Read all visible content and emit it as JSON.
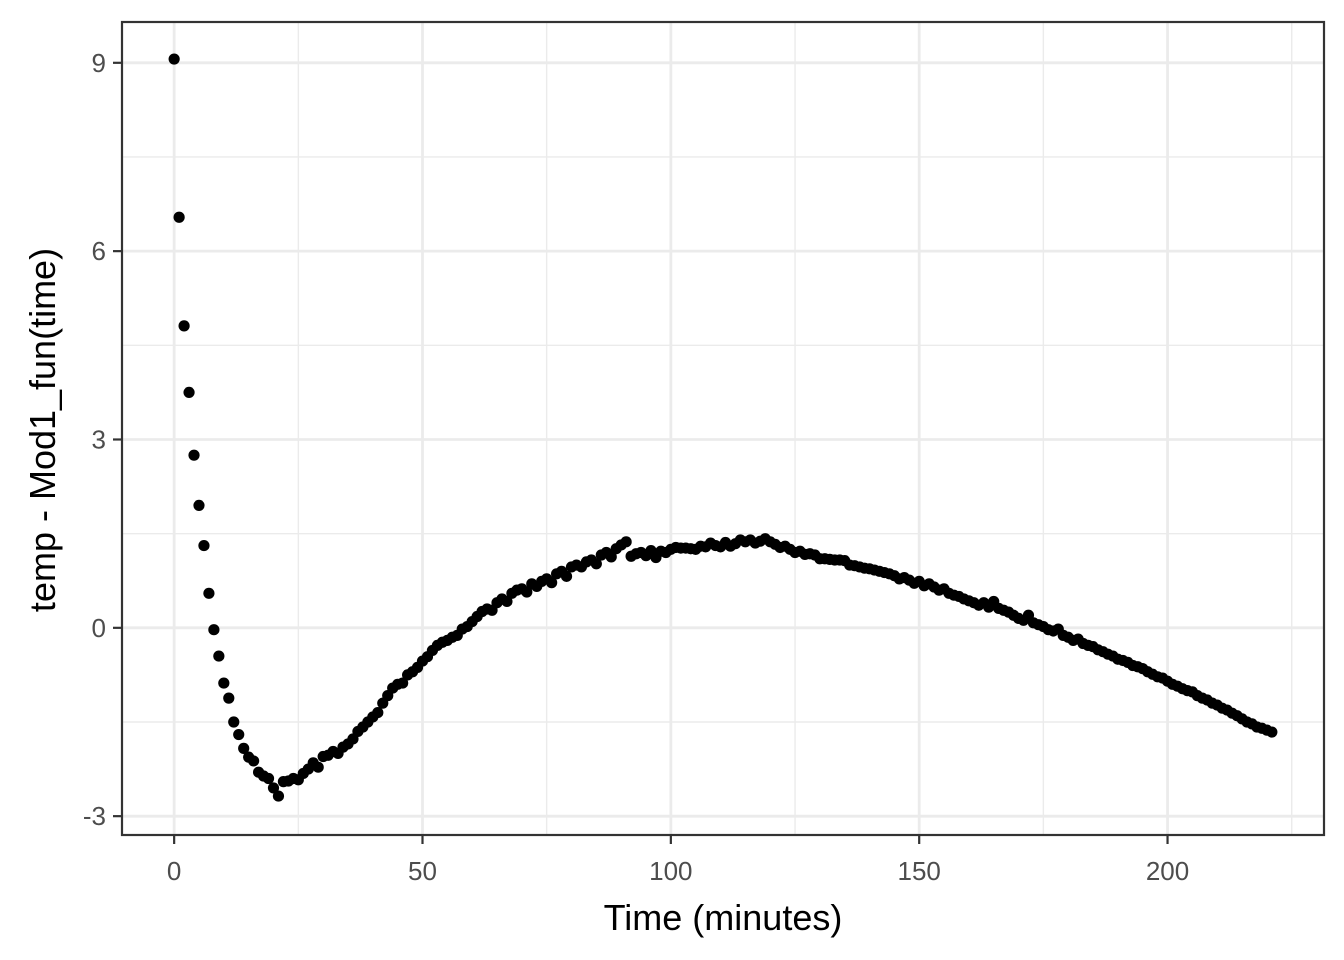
{
  "chart_data": {
    "type": "scatter",
    "xlabel": "Time (minutes)",
    "ylabel": "temp - Mod1_fun(time)",
    "xlim": [
      -10.5,
      231.5
    ],
    "ylim": [
      -3.3,
      9.65
    ],
    "x_ticks": [
      0,
      50,
      100,
      150,
      200
    ],
    "y_ticks": [
      -3,
      0,
      3,
      6,
      9
    ],
    "x_tick_labels": [
      "0",
      "50",
      "100",
      "150",
      "200"
    ],
    "y_tick_labels": [
      "-3",
      "0",
      "3",
      "6",
      "9"
    ],
    "grid": true,
    "legend": "none",
    "point_color": "#000000",
    "points": [
      [
        0,
        9.06
      ],
      [
        1,
        6.54
      ],
      [
        2,
        4.81
      ],
      [
        3,
        3.75
      ],
      [
        4,
        2.75
      ],
      [
        5,
        1.95
      ],
      [
        6,
        1.31
      ],
      [
        7,
        0.55
      ],
      [
        8,
        -0.03
      ],
      [
        9,
        -0.45
      ],
      [
        10,
        -0.88
      ],
      [
        11,
        -1.12
      ],
      [
        12,
        -1.5
      ],
      [
        13,
        -1.7
      ],
      [
        14,
        -1.92
      ],
      [
        15,
        -2.06
      ],
      [
        16,
        -2.12
      ],
      [
        17,
        -2.3
      ],
      [
        18,
        -2.36
      ],
      [
        19,
        -2.4
      ],
      [
        20,
        -2.55
      ],
      [
        21,
        -2.68
      ],
      [
        22,
        -2.45
      ],
      [
        23,
        -2.44
      ],
      [
        24,
        -2.4
      ],
      [
        25,
        -2.42
      ],
      [
        26,
        -2.32
      ],
      [
        27,
        -2.25
      ],
      [
        28,
        -2.15
      ],
      [
        29,
        -2.22
      ],
      [
        30,
        -2.05
      ],
      [
        31,
        -2.03
      ],
      [
        32,
        -1.97
      ],
      [
        33,
        -2.0
      ],
      [
        34,
        -1.9
      ],
      [
        35,
        -1.85
      ],
      [
        36,
        -1.77
      ],
      [
        37,
        -1.65
      ],
      [
        38,
        -1.58
      ],
      [
        39,
        -1.5
      ],
      [
        40,
        -1.42
      ],
      [
        41,
        -1.35
      ],
      [
        42,
        -1.2
      ],
      [
        43,
        -1.08
      ],
      [
        44,
        -0.96
      ],
      [
        45,
        -0.9
      ],
      [
        46,
        -0.88
      ],
      [
        47,
        -0.75
      ],
      [
        48,
        -0.7
      ],
      [
        49,
        -0.63
      ],
      [
        50,
        -0.53
      ],
      [
        51,
        -0.46
      ],
      [
        52,
        -0.36
      ],
      [
        53,
        -0.28
      ],
      [
        54,
        -0.23
      ],
      [
        55,
        -0.2
      ],
      [
        56,
        -0.15
      ],
      [
        57,
        -0.12
      ],
      [
        58,
        -0.02
      ],
      [
        59,
        0.02
      ],
      [
        60,
        0.1
      ],
      [
        61,
        0.18
      ],
      [
        62,
        0.26
      ],
      [
        63,
        0.3
      ],
      [
        64,
        0.28
      ],
      [
        65,
        0.4
      ],
      [
        66,
        0.46
      ],
      [
        67,
        0.42
      ],
      [
        68,
        0.55
      ],
      [
        69,
        0.6
      ],
      [
        70,
        0.62
      ],
      [
        71,
        0.57
      ],
      [
        72,
        0.7
      ],
      [
        73,
        0.66
      ],
      [
        74,
        0.74
      ],
      [
        75,
        0.78
      ],
      [
        76,
        0.72
      ],
      [
        77,
        0.86
      ],
      [
        78,
        0.9
      ],
      [
        79,
        0.82
      ],
      [
        80,
        0.97
      ],
      [
        81,
        1.0
      ],
      [
        82,
        0.97
      ],
      [
        83,
        1.05
      ],
      [
        84,
        1.08
      ],
      [
        85,
        1.02
      ],
      [
        86,
        1.16
      ],
      [
        87,
        1.2
      ],
      [
        88,
        1.13
      ],
      [
        89,
        1.26
      ],
      [
        90,
        1.32
      ],
      [
        91,
        1.37
      ],
      [
        92,
        1.14
      ],
      [
        93,
        1.18
      ],
      [
        94,
        1.2
      ],
      [
        95,
        1.15
      ],
      [
        96,
        1.23
      ],
      [
        97,
        1.12
      ],
      [
        98,
        1.22
      ],
      [
        99,
        1.2
      ],
      [
        100,
        1.25
      ],
      [
        101,
        1.28
      ],
      [
        102,
        1.27
      ],
      [
        103,
        1.27
      ],
      [
        104,
        1.26
      ],
      [
        105,
        1.25
      ],
      [
        106,
        1.3
      ],
      [
        107,
        1.29
      ],
      [
        108,
        1.35
      ],
      [
        109,
        1.31
      ],
      [
        110,
        1.29
      ],
      [
        111,
        1.36
      ],
      [
        112,
        1.3
      ],
      [
        113,
        1.34
      ],
      [
        114,
        1.4
      ],
      [
        115,
        1.37
      ],
      [
        116,
        1.4
      ],
      [
        117,
        1.35
      ],
      [
        118,
        1.38
      ],
      [
        119,
        1.42
      ],
      [
        120,
        1.37
      ],
      [
        121,
        1.33
      ],
      [
        122,
        1.28
      ],
      [
        123,
        1.3
      ],
      [
        124,
        1.25
      ],
      [
        125,
        1.2
      ],
      [
        126,
        1.22
      ],
      [
        127,
        1.17
      ],
      [
        128,
        1.18
      ],
      [
        129,
        1.16
      ],
      [
        130,
        1.1
      ],
      [
        131,
        1.1
      ],
      [
        132,
        1.09
      ],
      [
        133,
        1.08
      ],
      [
        134,
        1.08
      ],
      [
        135,
        1.07
      ],
      [
        136,
        1.0
      ],
      [
        137,
        0.99
      ],
      [
        138,
        0.97
      ],
      [
        139,
        0.95
      ],
      [
        140,
        0.94
      ],
      [
        141,
        0.92
      ],
      [
        142,
        0.9
      ],
      [
        143,
        0.88
      ],
      [
        144,
        0.86
      ],
      [
        145,
        0.83
      ],
      [
        146,
        0.78
      ],
      [
        147,
        0.8
      ],
      [
        148,
        0.76
      ],
      [
        149,
        0.71
      ],
      [
        150,
        0.74
      ],
      [
        151,
        0.67
      ],
      [
        152,
        0.7
      ],
      [
        153,
        0.65
      ],
      [
        154,
        0.6
      ],
      [
        155,
        0.62
      ],
      [
        156,
        0.55
      ],
      [
        157,
        0.52
      ],
      [
        158,
        0.5
      ],
      [
        159,
        0.46
      ],
      [
        160,
        0.43
      ],
      [
        161,
        0.4
      ],
      [
        162,
        0.36
      ],
      [
        163,
        0.4
      ],
      [
        164,
        0.33
      ],
      [
        165,
        0.42
      ],
      [
        166,
        0.31
      ],
      [
        167,
        0.28
      ],
      [
        168,
        0.25
      ],
      [
        169,
        0.2
      ],
      [
        170,
        0.15
      ],
      [
        171,
        0.12
      ],
      [
        172,
        0.2
      ],
      [
        173,
        0.08
      ],
      [
        174,
        0.05
      ],
      [
        175,
        0.02
      ],
      [
        176,
        -0.03
      ],
      [
        177,
        -0.05
      ],
      [
        178,
        -0.02
      ],
      [
        179,
        -0.12
      ],
      [
        180,
        -0.15
      ],
      [
        181,
        -0.2
      ],
      [
        182,
        -0.18
      ],
      [
        183,
        -0.25
      ],
      [
        184,
        -0.28
      ],
      [
        185,
        -0.3
      ],
      [
        186,
        -0.35
      ],
      [
        187,
        -0.38
      ],
      [
        188,
        -0.42
      ],
      [
        189,
        -0.45
      ],
      [
        190,
        -0.5
      ],
      [
        191,
        -0.52
      ],
      [
        192,
        -0.55
      ],
      [
        193,
        -0.6
      ],
      [
        194,
        -0.62
      ],
      [
        195,
        -0.65
      ],
      [
        196,
        -0.7
      ],
      [
        197,
        -0.74
      ],
      [
        198,
        -0.78
      ],
      [
        199,
        -0.8
      ],
      [
        200,
        -0.85
      ],
      [
        201,
        -0.9
      ],
      [
        202,
        -0.93
      ],
      [
        203,
        -0.97
      ],
      [
        204,
        -1.0
      ],
      [
        205,
        -1.02
      ],
      [
        206,
        -1.08
      ],
      [
        207,
        -1.12
      ],
      [
        208,
        -1.15
      ],
      [
        209,
        -1.2
      ],
      [
        210,
        -1.23
      ],
      [
        211,
        -1.28
      ],
      [
        212,
        -1.31
      ],
      [
        213,
        -1.36
      ],
      [
        214,
        -1.4
      ],
      [
        215,
        -1.45
      ],
      [
        216,
        -1.5
      ],
      [
        217,
        -1.53
      ],
      [
        218,
        -1.58
      ],
      [
        219,
        -1.6
      ],
      [
        220,
        -1.63
      ],
      [
        221,
        -1.66
      ]
    ]
  }
}
